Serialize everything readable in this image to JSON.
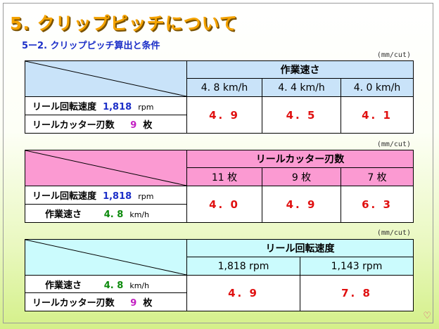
{
  "title": "5. クリップピッチについて",
  "subtitle": "5ー2. クリップピッチ算出と条件",
  "unit": "(mm/cut)",
  "table1": {
    "header": "作業速さ",
    "columns": [
      "4. 8 km/h",
      "4. 4 km/h",
      "4. 0 km/h"
    ],
    "rows": [
      {
        "label": "リール回転速度",
        "value": "1,818",
        "unit": "rpm"
      },
      {
        "label": "リールカッター刃数",
        "value": "9",
        "unit": "枚"
      }
    ],
    "values": [
      "4. 9",
      "4. 5",
      "4. 1"
    ]
  },
  "table2": {
    "header": "リールカッター刃数",
    "columns": [
      "11 枚",
      "9 枚",
      "7 枚"
    ],
    "rows": [
      {
        "label": "リール回転速度",
        "value": "1,818",
        "unit": "rpm"
      },
      {
        "label": "作業速さ",
        "value": "4. 8",
        "unit": "km/h"
      }
    ],
    "values": [
      "4. 0",
      "4. 9",
      "6. 3"
    ]
  },
  "table3": {
    "header": "リール回転速度",
    "columns": [
      "1,818 rpm",
      "1,143 rpm"
    ],
    "rows": [
      {
        "label": "作業速さ",
        "value": "4. 8",
        "unit": "km/h"
      },
      {
        "label": "リールカッター刃数",
        "value": "9",
        "unit": "枚"
      }
    ],
    "values": [
      "4. 9",
      "7. 8"
    ]
  },
  "colors": {
    "title": "#f5a300",
    "subtitle": "#1c2fc8",
    "value": "#e01010"
  }
}
